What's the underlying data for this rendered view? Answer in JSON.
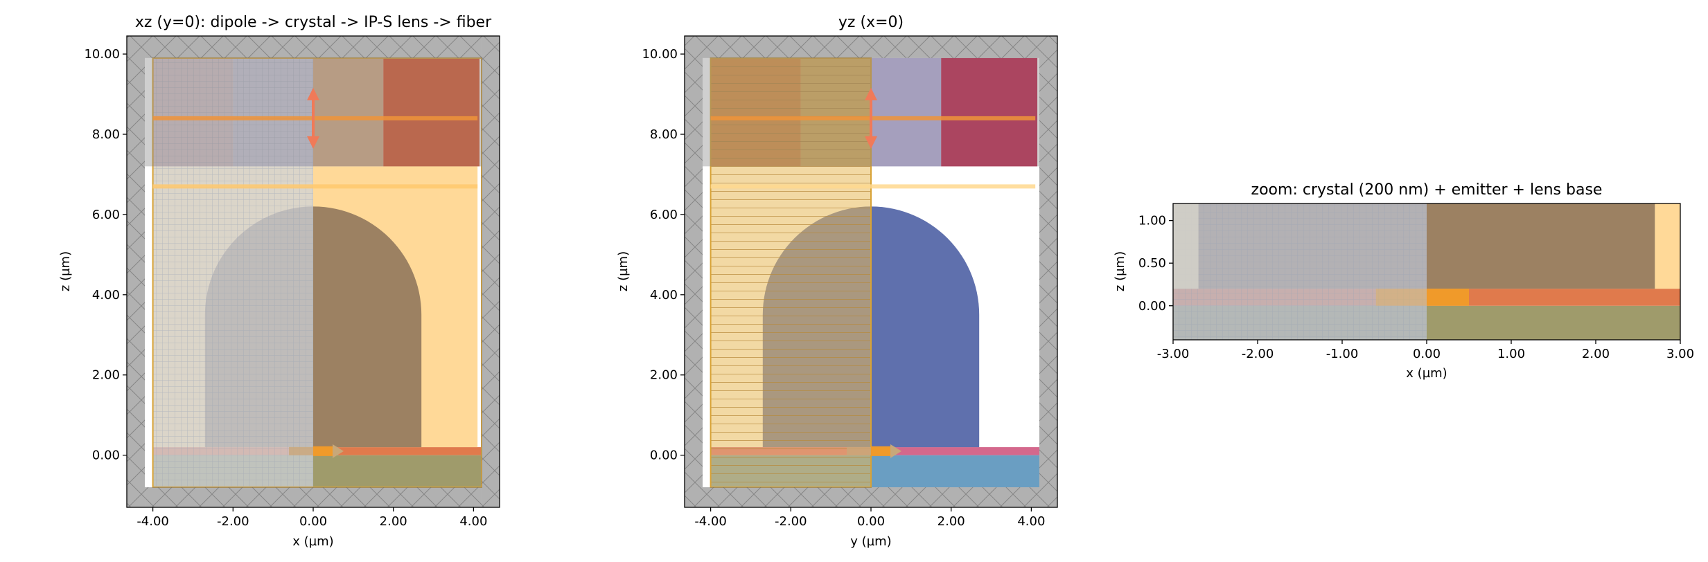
{
  "chart_data": [
    {
      "type": "heatmap",
      "title": "xz (y=0): dipole -> crystal -> IP-S lens -> fiber",
      "xlabel": "x (µm)",
      "ylabel": "z (µm)",
      "xlim": [
        -4.65,
        4.65
      ],
      "ylim": [
        -1.3,
        10.45
      ],
      "xticks": [
        "-4.00",
        "-2.00",
        "0.00",
        "2.00",
        "4.00"
      ],
      "yticks": [
        "0.00",
        "2.00",
        "4.00",
        "6.00",
        "8.00",
        "10.00"
      ],
      "xtick_values": [
        -4,
        -2,
        0,
        2,
        4
      ],
      "ytick_values": [
        0,
        2,
        4,
        6,
        8,
        10
      ],
      "lens_radius": 2.7,
      "lens_top": 6.2,
      "regions": [
        {
          "x": [
            -4.0,
            4.2
          ],
          "z": [
            -0.8,
            0.0
          ],
          "color": "#9f9b6b"
        },
        {
          "x": [
            -4.0,
            4.2
          ],
          "z": [
            0.0,
            0.2
          ],
          "color": "#e07a4c"
        },
        {
          "x": [
            -4.0,
            4.1
          ],
          "z": [
            0.2,
            7.2
          ],
          "color": "#ffd998"
        },
        {
          "x": [
            -2.0,
            0.0
          ],
          "z": [
            7.2,
            9.9
          ],
          "color": "#d2b9d9"
        },
        {
          "x": [
            0.0,
            1.75
          ],
          "z": [
            7.2,
            9.9
          ],
          "color": "#d8ad87"
        },
        {
          "x": [
            1.75,
            4.15
          ],
          "z": [
            7.2,
            9.9
          ],
          "color": "#dd5a2f"
        },
        {
          "x": [
            -4.0,
            -2.0
          ],
          "z": [
            7.2,
            9.9
          ],
          "color": "#f2a8a2"
        }
      ],
      "lens_color": "#9c8162",
      "monitor_lines": [
        {
          "z": 8.4,
          "color": "#f0943a"
        },
        {
          "z": 6.7,
          "color": "#ffc96e"
        }
      ],
      "source_arrow": {
        "x": 0.0,
        "z": 8.4,
        "color": "#f07a58"
      },
      "dipole": {
        "x": 0.0,
        "z": 0.1,
        "color": "#f09a2a"
      }
    },
    {
      "type": "heatmap",
      "title": "yz (x=0)",
      "xlabel": "y (µm)",
      "ylabel": "z (µm)",
      "xlim": [
        -4.65,
        4.65
      ],
      "ylim": [
        -1.3,
        10.45
      ],
      "xticks": [
        "-4.00",
        "-2.00",
        "0.00",
        "2.00",
        "4.00"
      ],
      "yticks": [
        "0.00",
        "2.00",
        "4.00",
        "6.00",
        "8.00",
        "10.00"
      ],
      "xtick_values": [
        -4,
        -2,
        0,
        2,
        4
      ],
      "ytick_values": [
        0,
        2,
        4,
        6,
        8,
        10
      ],
      "lens_radius": 2.7,
      "lens_top": 6.2,
      "regions": [
        {
          "x": [
            -4.0,
            4.2
          ],
          "z": [
            -0.8,
            0.0
          ],
          "color": "#6a9ec2"
        },
        {
          "x": [
            -4.0,
            4.2
          ],
          "z": [
            0.0,
            0.2
          ],
          "color": "#d4688c"
        },
        {
          "x": [
            -4.0,
            -1.75
          ],
          "z": [
            7.2,
            9.9
          ],
          "color": "#dd6b25"
        },
        {
          "x": [
            -1.75,
            0.0
          ],
          "z": [
            7.2,
            9.9
          ],
          "color": "#d6a656"
        },
        {
          "x": [
            0.0,
            1.75
          ],
          "z": [
            7.2,
            9.9
          ],
          "color": "#bbb2e3"
        },
        {
          "x": [
            1.75,
            4.15
          ],
          "z": [
            7.2,
            9.9
          ],
          "color": "#c6214d"
        }
      ],
      "lens_color": "#5f70ad",
      "monitor_lines": [
        {
          "z": 8.4,
          "color": "#f0943a"
        },
        {
          "z": 6.7,
          "color": "#ffd98f"
        }
      ],
      "source_arrow": {
        "x": 0.0,
        "z": 8.4,
        "color": "#f07a58"
      },
      "dipole": {
        "x": 0.0,
        "z": 0.1,
        "color": "#f09a2a"
      }
    },
    {
      "type": "heatmap",
      "title": "zoom: crystal (200 nm) + emitter + lens base",
      "xlabel": "x (µm)",
      "ylabel": "z (µm)",
      "xlim": [
        -3.0,
        3.0
      ],
      "ylim": [
        -0.4,
        1.2
      ],
      "xticks": [
        "-3.00",
        "-2.00",
        "-1.00",
        "0.00",
        "1.00",
        "2.00",
        "3.00"
      ],
      "yticks": [
        "0.00",
        "0.50",
        "1.00"
      ],
      "xtick_values": [
        -3,
        -2,
        -1,
        0,
        1,
        2,
        3
      ],
      "ytick_values": [
        0,
        0.5,
        1
      ],
      "regions": [
        {
          "x": [
            -3.0,
            3.0
          ],
          "z": [
            -0.4,
            0.0
          ],
          "color": "#9f9b6b"
        },
        {
          "x": [
            -3.0,
            3.0
          ],
          "z": [
            0.0,
            0.2
          ],
          "color": "#e07a4c"
        },
        {
          "x": [
            -3.0,
            2.7
          ],
          "z": [
            0.2,
            1.2
          ],
          "color": "#9c8162"
        },
        {
          "x": [
            2.7,
            3.0
          ],
          "z": [
            0.2,
            1.2
          ],
          "color": "#ffd998"
        }
      ],
      "dipole": {
        "x": 0.1,
        "z": 0.1,
        "color": "#f09a2a"
      }
    }
  ]
}
